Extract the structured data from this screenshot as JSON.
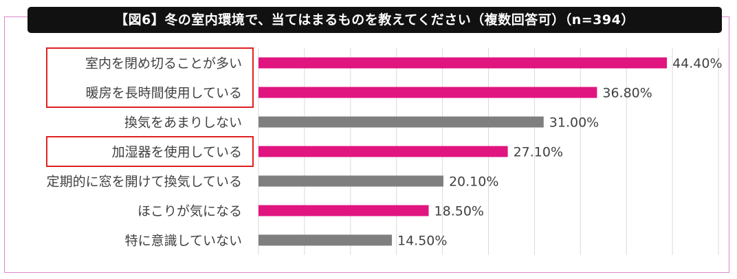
{
  "chart_data": {
    "type": "bar",
    "orientation": "horizontal",
    "title": "【図6】冬の室内環境で、当てはまるものを教えてください（複数回答可）（n=394）",
    "categories": [
      "室内を閉め切ることが多い",
      "暖房を長時間使用している",
      "換気をあまりしない",
      "加湿器を使用している",
      "定期的に窓を開けて換気している",
      "ほこりが気になる",
      "特に意識していない"
    ],
    "values": [
      44.4,
      36.8,
      31.0,
      27.1,
      20.1,
      18.5,
      14.5
    ],
    "value_labels": [
      "44.40%",
      "36.80%",
      "31.00%",
      "27.10%",
      "20.10%",
      "18.50%",
      "14.50%"
    ],
    "bar_colors": [
      "#e0157f",
      "#e0157f",
      "#7f7f7f",
      "#e0157f",
      "#7f7f7f",
      "#e0157f",
      "#7f7f7f"
    ],
    "highlighted_categories": [
      "室内を閉め切ることが多い",
      "暖房を長時間使用している",
      "加湿器を使用している"
    ],
    "highlight_color": "#e02020",
    "xlim": [
      0,
      50
    ],
    "grid": true,
    "xlabel": "",
    "ylabel": ""
  }
}
